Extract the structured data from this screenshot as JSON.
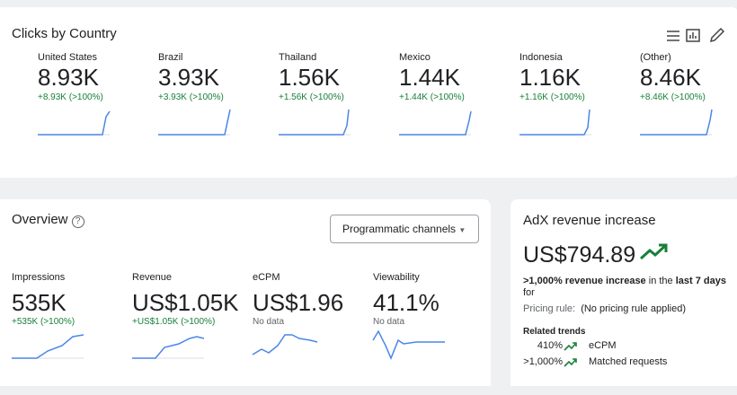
{
  "clicks_card": {
    "title": "Clicks by Country",
    "countries": [
      {
        "name": "United States",
        "value": "8.93K",
        "change": "+8.93K (>100%)"
      },
      {
        "name": "Brazil",
        "value": "3.93K",
        "change": "+3.93K (>100%)"
      },
      {
        "name": "Thailand",
        "value": "1.56K",
        "change": "+1.56K (>100%)"
      },
      {
        "name": "Mexico",
        "value": "1.44K",
        "change": "+1.44K (>100%)"
      },
      {
        "name": "Indonesia",
        "value": "1.16K",
        "change": "+1.16K (>100%)"
      },
      {
        "name": "(Other)",
        "value": "8.46K",
        "change": "+8.46K (>100%)"
      }
    ]
  },
  "overview_card": {
    "title": "Overview",
    "dropdown": "Programmatic channels",
    "metrics": [
      {
        "name": "Impressions",
        "value": "535K",
        "change": "+535K (>100%)"
      },
      {
        "name": "Revenue",
        "value": "US$1.05K",
        "change": "+US$1.05K (>100%)"
      },
      {
        "name": "eCPM",
        "value": "US$1.96",
        "change": "No data"
      },
      {
        "name": "Viewability",
        "value": "41.1%",
        "change": "No data"
      }
    ]
  },
  "adx_card": {
    "title": "AdX revenue increase",
    "value": "US$794.89",
    "description": {
      "highlight": ">1,000% revenue increase",
      "middle": "in the",
      "period": "last 7 days",
      "end": "for"
    },
    "pricing_rule": {
      "label": "Pricing rule:",
      "value": "(No pricing rule applied)"
    },
    "related_trends": {
      "title": "Related trends",
      "items": [
        {
          "value": "410%",
          "name": "eCPM"
        },
        {
          "value": ">1,000%",
          "name": "Matched requests"
        }
      ]
    }
  }
}
